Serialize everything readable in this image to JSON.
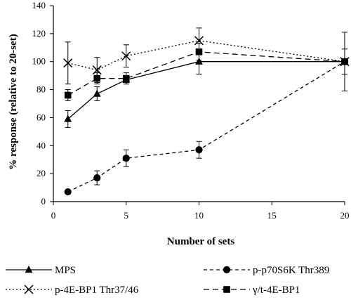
{
  "chart_data": {
    "type": "line",
    "xlabel": "Number of sets",
    "ylabel": "% response (relative to 20-set)",
    "x": [
      1,
      3,
      5,
      10,
      20
    ],
    "xlim": [
      0,
      20
    ],
    "ylim": [
      0,
      140
    ],
    "xticks": [
      "0",
      "5",
      "10",
      "15",
      "20"
    ],
    "yticks": [
      "0",
      "20",
      "40",
      "60",
      "80",
      "100",
      "120",
      "140"
    ],
    "xtick_values": [
      0,
      5,
      10,
      15,
      20
    ],
    "ytick_values": [
      0,
      20,
      40,
      60,
      80,
      100,
      120,
      140
    ],
    "grid": false,
    "legend_position": "bottom",
    "series": [
      {
        "name": "MPS",
        "marker": "triangle",
        "line_style": "solid",
        "values": [
          59,
          77,
          87,
          100,
          100
        ],
        "errors": [
          6,
          5,
          3,
          9,
          0
        ]
      },
      {
        "name": "p-p70S6K Thr389",
        "marker": "circle",
        "line_style": "dashed",
        "values": [
          7,
          17,
          31,
          37,
          100
        ],
        "errors": [
          1,
          5,
          6,
          6,
          21
        ]
      },
      {
        "name": "p-4E-BP1 Thr37/46",
        "marker": "x",
        "line_style": "dotted",
        "values": [
          99,
          94,
          104,
          115,
          100
        ],
        "errors": [
          15,
          9,
          8,
          9,
          0
        ]
      },
      {
        "name": "γ/t-4E-BP1",
        "marker": "square",
        "line_style": "long-dashed",
        "values": [
          76,
          88,
          88,
          107,
          100
        ],
        "errors": [
          4,
          4,
          4,
          6,
          9
        ]
      }
    ],
    "colors": {
      "ink": "#000000",
      "background": "#ffffff"
    }
  }
}
